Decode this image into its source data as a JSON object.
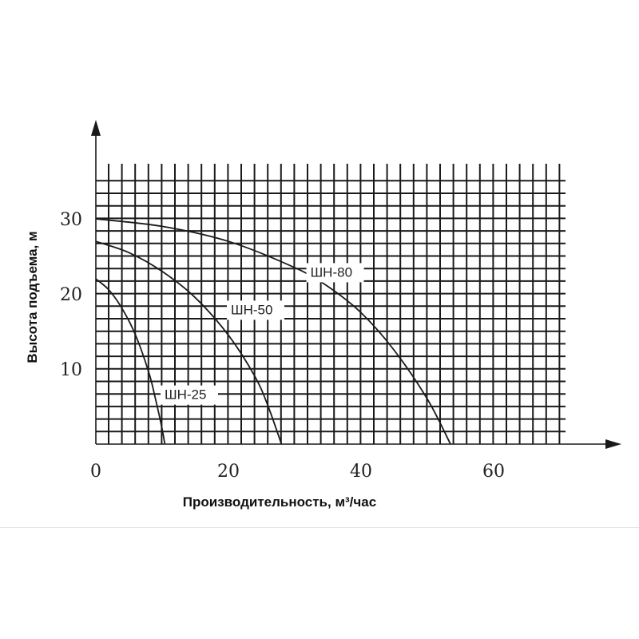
{
  "chart_data": {
    "type": "line",
    "xlabel": "Производительность,  м³/час",
    "ylabel": "Высота подъема, м",
    "xlim": [
      0,
      72
    ],
    "ylim": [
      0,
      37
    ],
    "grid": true,
    "x_ticks": [
      "0",
      "20",
      "40",
      "60"
    ],
    "y_ticks": [
      "10",
      "20",
      "30"
    ],
    "series": [
      {
        "name": "ШН-25",
        "x": [
          0,
          2,
          4,
          6,
          8,
          9,
          10,
          10.4
        ],
        "y": [
          22,
          20.5,
          18,
          14.5,
          9.5,
          6,
          2,
          0
        ]
      },
      {
        "name": "ШН-50",
        "x": [
          0,
          5,
          10,
          15,
          20,
          24,
          26,
          28
        ],
        "y": [
          27,
          25.5,
          23,
          19.5,
          14.5,
          9,
          5,
          0
        ]
      },
      {
        "name": "ШН-80",
        "x": [
          0,
          10,
          20,
          30,
          35,
          40,
          45,
          50,
          53.5
        ],
        "y": [
          30,
          29,
          27,
          23.5,
          21,
          17.5,
          12.5,
          6,
          0
        ]
      }
    ]
  }
}
